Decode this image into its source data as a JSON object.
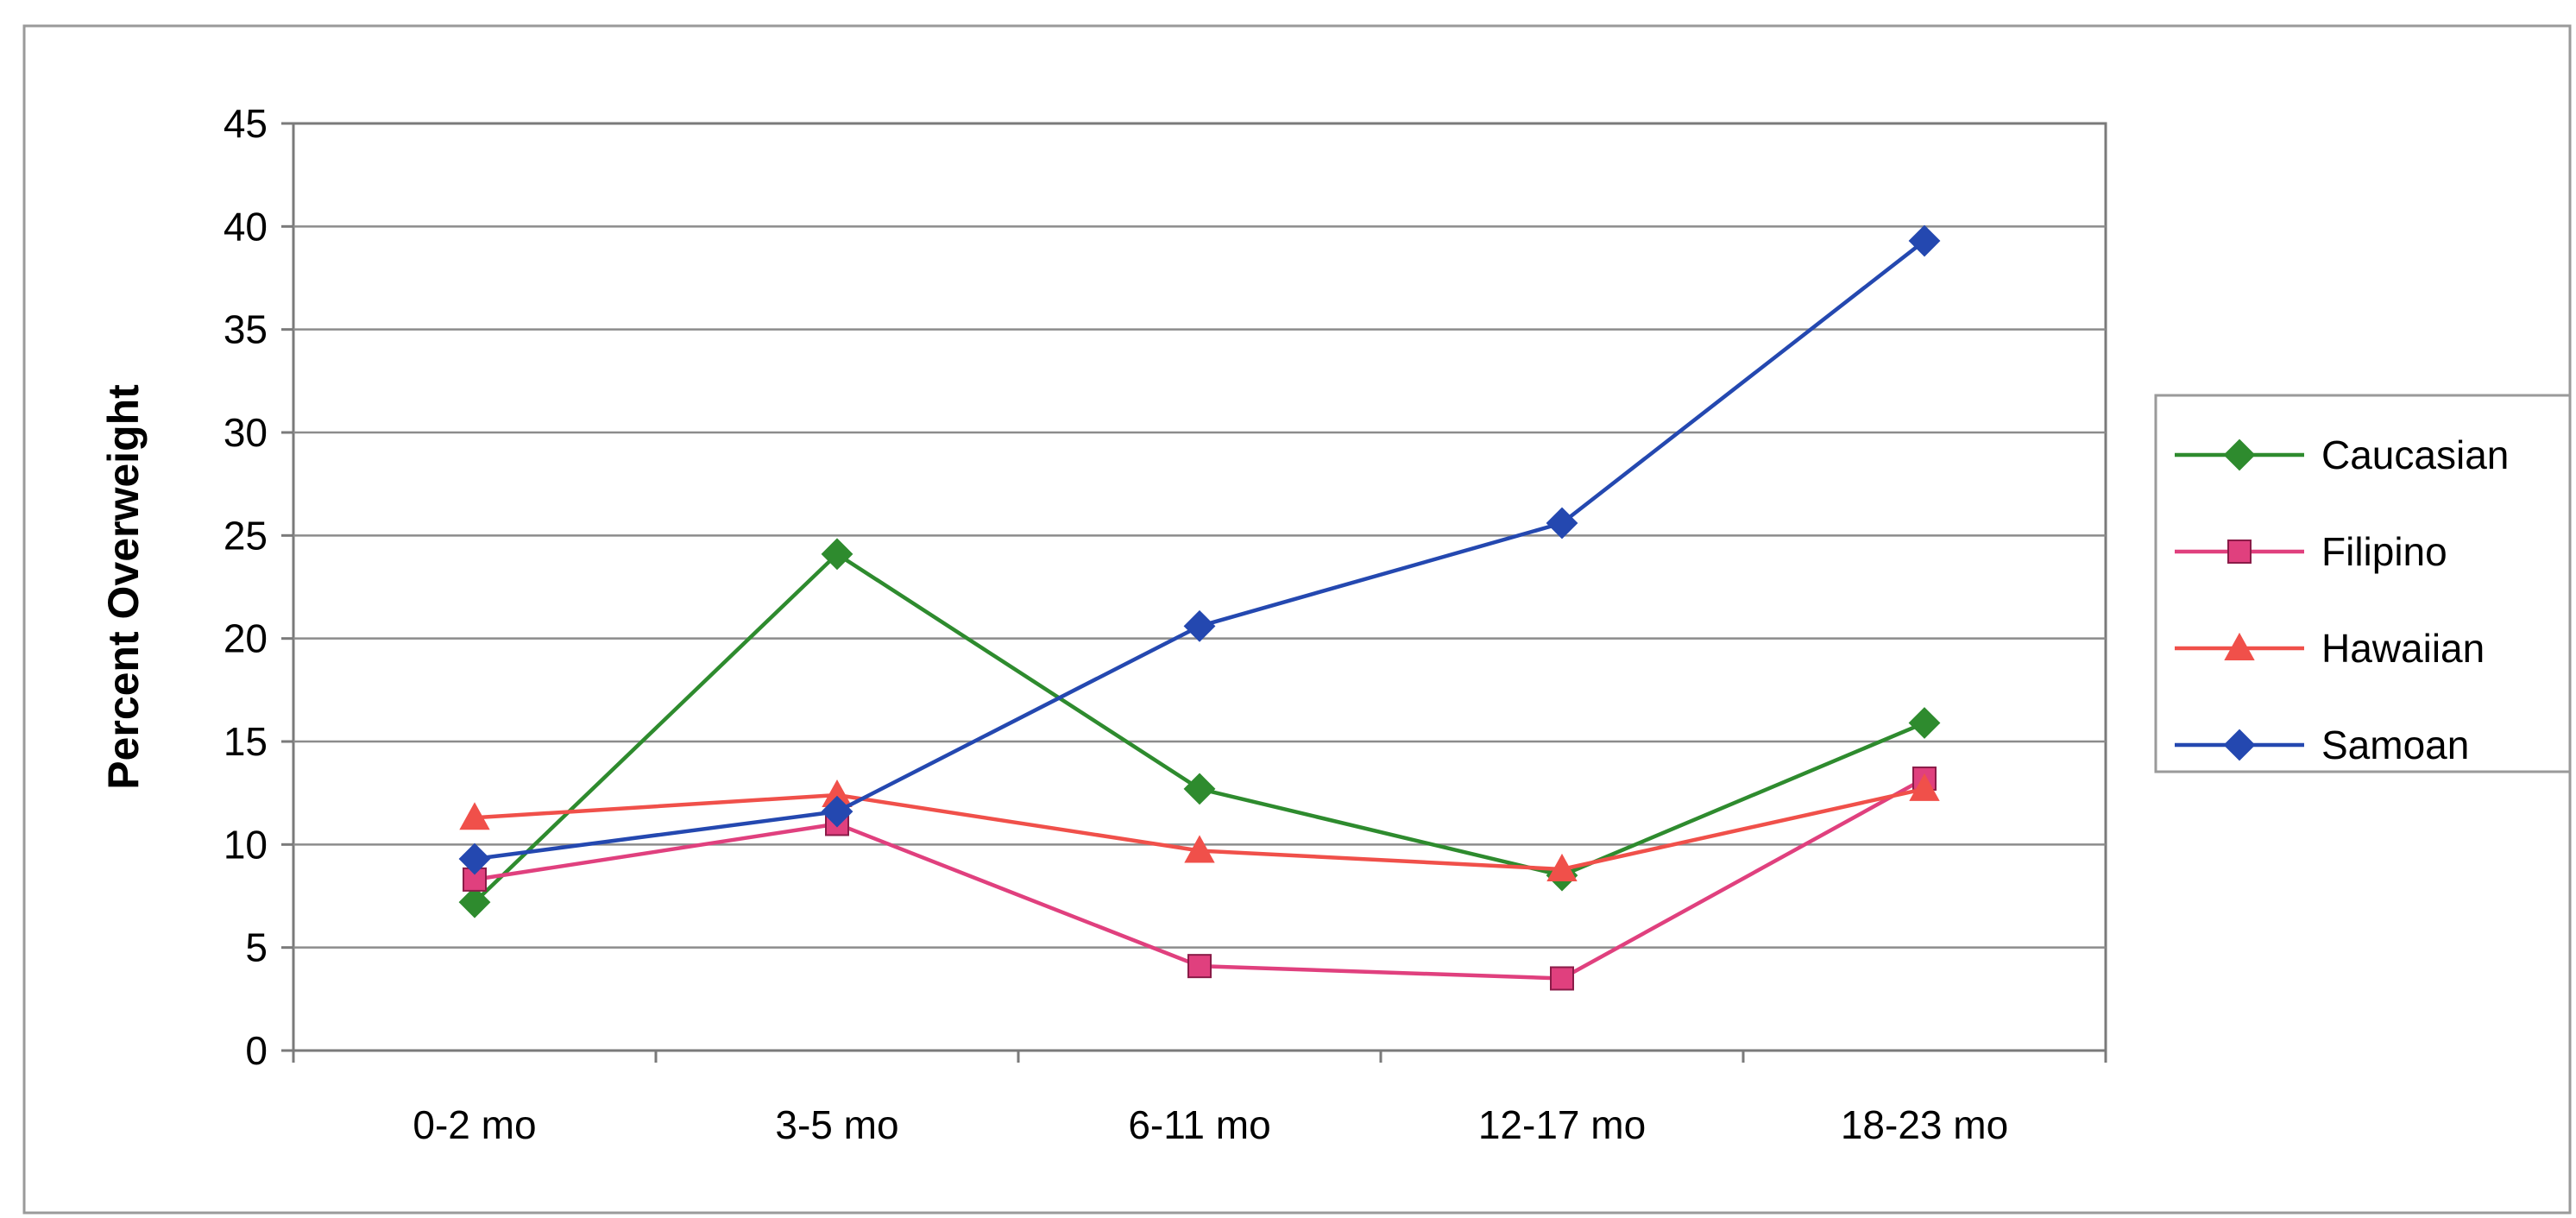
{
  "chart_data": {
    "type": "line",
    "title": "",
    "xlabel": "",
    "ylabel": "Percent Overweight",
    "ylim": [
      0,
      45
    ],
    "yticks": [
      0,
      5,
      10,
      15,
      20,
      25,
      30,
      35,
      40,
      45
    ],
    "grid": true,
    "legend_position": "right",
    "categories": [
      "0-2 mo",
      "3-5 mo",
      "6-11 mo",
      "12-17 mo",
      "18-23 mo"
    ],
    "series": [
      {
        "name": "Caucasian",
        "color": "#2e8b2e",
        "marker": "diamond",
        "values": [
          7.2,
          24.1,
          12.7,
          8.5,
          15.9
        ]
      },
      {
        "name": "Filipino",
        "color": "#e0407e",
        "marker": "square",
        "values": [
          8.3,
          11.0,
          4.1,
          3.5,
          13.2
        ]
      },
      {
        "name": "Hawaiian",
        "color": "#f0504a",
        "marker": "triangle",
        "values": [
          11.3,
          12.4,
          9.7,
          8.8,
          12.7
        ]
      },
      {
        "name": "Samoan",
        "color": "#2448b0",
        "marker": "diamond",
        "values": [
          9.3,
          11.6,
          20.6,
          25.6,
          39.3
        ]
      }
    ]
  }
}
